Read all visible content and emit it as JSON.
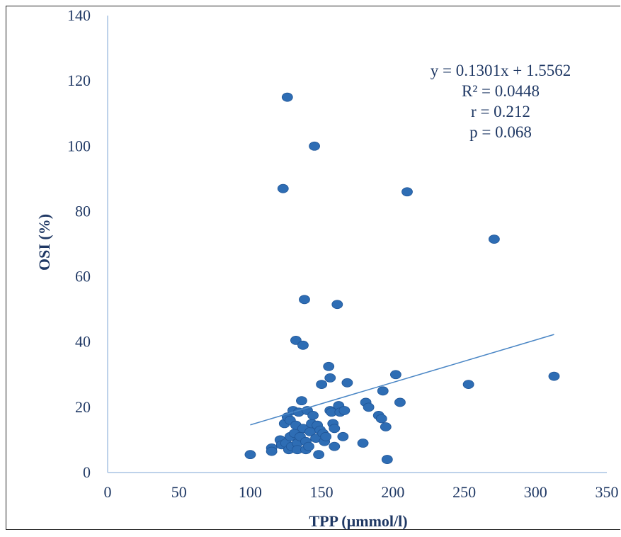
{
  "chart_data": {
    "type": "scatter",
    "title": "",
    "xlabel": "TPP (µmmol/l)",
    "ylabel": "OSI (%)",
    "xlim": [
      0,
      350
    ],
    "ylim": [
      0,
      140
    ],
    "x_ticks": [
      "0",
      "50",
      "100",
      "150",
      "200",
      "250",
      "300",
      "350"
    ],
    "y_ticks": [
      "0",
      "20",
      "40",
      "60",
      "80",
      "100",
      "120",
      "140"
    ],
    "grid": false,
    "legend": "none",
    "marker_color": "#2e6db4",
    "trendline_color": "#4a86c5",
    "axis_color": "#a9c4e4",
    "annotations": [
      "y = 0.1301x + 1.5562",
      "R² = 0.0448",
      "r = 0.212",
      "p = 0.068"
    ],
    "trendline": {
      "x": [
        100,
        313
      ],
      "y": [
        14.6,
        42.3
      ]
    },
    "points": [
      {
        "x": 100,
        "y": 5.5
      },
      {
        "x": 115,
        "y": 7.5
      },
      {
        "x": 115,
        "y": 6.5
      },
      {
        "x": 121,
        "y": 10
      },
      {
        "x": 122,
        "y": 8.5
      },
      {
        "x": 123,
        "y": 87
      },
      {
        "x": 124,
        "y": 15
      },
      {
        "x": 125,
        "y": 9
      },
      {
        "x": 126,
        "y": 115
      },
      {
        "x": 126,
        "y": 17
      },
      {
        "x": 127,
        "y": 7
      },
      {
        "x": 128,
        "y": 16
      },
      {
        "x": 128,
        "y": 11
      },
      {
        "x": 129,
        "y": 8
      },
      {
        "x": 130,
        "y": 19
      },
      {
        "x": 131,
        "y": 12
      },
      {
        "x": 132,
        "y": 40.5
      },
      {
        "x": 132,
        "y": 14.5
      },
      {
        "x": 133,
        "y": 9
      },
      {
        "x": 133,
        "y": 7
      },
      {
        "x": 134,
        "y": 18.5
      },
      {
        "x": 135,
        "y": 11
      },
      {
        "x": 136,
        "y": 22
      },
      {
        "x": 137,
        "y": 39
      },
      {
        "x": 137,
        "y": 13.5
      },
      {
        "x": 138,
        "y": 53
      },
      {
        "x": 139,
        "y": 9.5
      },
      {
        "x": 139,
        "y": 7
      },
      {
        "x": 140,
        "y": 19
      },
      {
        "x": 141,
        "y": 8
      },
      {
        "x": 142,
        "y": 12.5
      },
      {
        "x": 143,
        "y": 15
      },
      {
        "x": 144,
        "y": 17.5
      },
      {
        "x": 145,
        "y": 100
      },
      {
        "x": 146,
        "y": 10.5
      },
      {
        "x": 147,
        "y": 14.5
      },
      {
        "x": 148,
        "y": 5.5
      },
      {
        "x": 149,
        "y": 13
      },
      {
        "x": 150,
        "y": 27
      },
      {
        "x": 151,
        "y": 12
      },
      {
        "x": 152,
        "y": 9.5
      },
      {
        "x": 153,
        "y": 11
      },
      {
        "x": 155,
        "y": 32.5
      },
      {
        "x": 156,
        "y": 29
      },
      {
        "x": 156,
        "y": 19
      },
      {
        "x": 157,
        "y": 18.5
      },
      {
        "x": 158,
        "y": 15
      },
      {
        "x": 159,
        "y": 13.5
      },
      {
        "x": 159,
        "y": 8
      },
      {
        "x": 161,
        "y": 51.5
      },
      {
        "x": 162,
        "y": 20.5
      },
      {
        "x": 163,
        "y": 18.5
      },
      {
        "x": 165,
        "y": 11
      },
      {
        "x": 166,
        "y": 19
      },
      {
        "x": 168,
        "y": 27.5
      },
      {
        "x": 179,
        "y": 9
      },
      {
        "x": 181,
        "y": 21.5
      },
      {
        "x": 183,
        "y": 20
      },
      {
        "x": 190,
        "y": 17.5
      },
      {
        "x": 192,
        "y": 16.5
      },
      {
        "x": 193,
        "y": 25
      },
      {
        "x": 195,
        "y": 14
      },
      {
        "x": 196,
        "y": 4
      },
      {
        "x": 202,
        "y": 30
      },
      {
        "x": 205,
        "y": 21.5
      },
      {
        "x": 210,
        "y": 86
      },
      {
        "x": 253,
        "y": 27
      },
      {
        "x": 271,
        "y": 71.5
      },
      {
        "x": 313,
        "y": 29.5
      }
    ]
  }
}
